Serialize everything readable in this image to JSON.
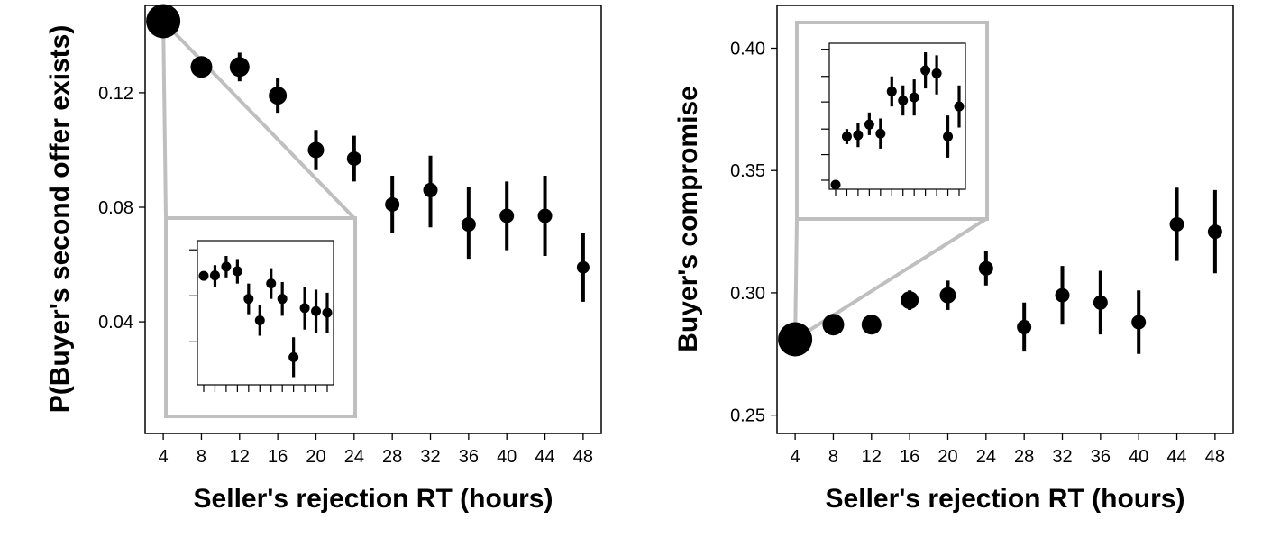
{
  "chart_data": [
    {
      "type": "scatter",
      "xlabel": "Seller's rejection RT (hours)",
      "ylabel": "P(Buyer's second offer exists)",
      "x": [
        4,
        8,
        12,
        16,
        20,
        24,
        28,
        32,
        36,
        40,
        44,
        48
      ],
      "y": [
        0.145,
        0.129,
        0.129,
        0.119,
        0.1,
        0.097,
        0.081,
        0.086,
        0.074,
        0.077,
        0.077,
        0.059
      ],
      "y_low": [
        0.145,
        0.129,
        0.124,
        0.113,
        0.093,
        0.089,
        0.071,
        0.073,
        0.062,
        0.065,
        0.063,
        0.047
      ],
      "y_high": [
        0.145,
        0.129,
        0.134,
        0.125,
        0.107,
        0.105,
        0.091,
        0.098,
        0.087,
        0.089,
        0.091,
        0.071
      ],
      "marker_size": [
        19,
        12,
        11,
        10,
        9,
        8,
        8,
        8,
        8,
        8,
        8,
        7
      ],
      "xlim": [
        2.1,
        49.9
      ],
      "ylim": [
        0.001,
        0.1505
      ],
      "xticks": [
        "4",
        "8",
        "12",
        "16",
        "20",
        "24",
        "28",
        "32",
        "36",
        "40",
        "44",
        "48"
      ],
      "yticks": [
        "0.04",
        "0.08",
        "0.12"
      ],
      "ytick_values": [
        0.04,
        0.08,
        0.12
      ],
      "zoom_range": [
        4,
        24
      ],
      "inset": {
        "y": [
          0.3,
          0.33,
          0.9,
          0.6,
          -1.2,
          -2.6,
          -0.2,
          -1.2,
          -5.0,
          -1.8,
          -2.0,
          -2.1
        ],
        "y_low": [
          0.0,
          -0.4,
          0.2,
          -0.2,
          -2.2,
          -3.6,
          -1.2,
          -2.3,
          -6.3,
          -3.2,
          -3.4,
          -3.4
        ],
        "y_high": [
          0.6,
          1.0,
          1.6,
          1.4,
          -0.2,
          -1.6,
          0.8,
          -0.1,
          -3.7,
          -0.4,
          -0.6,
          -0.8
        ],
        "ylim": [
          -6.8,
          2.6
        ],
        "ytick_values": [
          -4,
          -1,
          2
        ],
        "xtick_count": 12
      }
    },
    {
      "type": "scatter",
      "xlabel": "Seller's rejection RT (hours)",
      "ylabel": "Buyer's compromise",
      "x": [
        4,
        8,
        12,
        16,
        20,
        24,
        28,
        32,
        36,
        40,
        44,
        48
      ],
      "y": [
        0.281,
        0.287,
        0.287,
        0.297,
        0.299,
        0.31,
        0.286,
        0.299,
        0.296,
        0.288,
        0.328,
        0.325
      ],
      "y_low": [
        0.281,
        0.287,
        0.287,
        0.293,
        0.293,
        0.303,
        0.276,
        0.287,
        0.283,
        0.275,
        0.313,
        0.308
      ],
      "y_high": [
        0.281,
        0.287,
        0.287,
        0.301,
        0.305,
        0.317,
        0.296,
        0.311,
        0.309,
        0.301,
        0.343,
        0.342
      ],
      "marker_size": [
        19,
        12,
        11,
        10,
        9,
        8,
        8,
        8,
        8,
        8,
        8,
        8
      ],
      "xlim": [
        2.1,
        49.9
      ],
      "ylim": [
        0.2425,
        0.4175
      ],
      "xticks": [
        "4",
        "8",
        "12",
        "16",
        "20",
        "24",
        "28",
        "32",
        "36",
        "40",
        "44",
        "48"
      ],
      "yticks": [
        "0.25",
        "0.30",
        "0.35",
        "0.40"
      ],
      "ytick_values": [
        0.25,
        0.3,
        0.35,
        0.4
      ],
      "zoom_range": [
        4,
        24
      ],
      "inset": {
        "y": [
          -3.0,
          0.2,
          0.3,
          1.0,
          0.4,
          3.2,
          2.6,
          2.8,
          4.6,
          4.4,
          0.2,
          2.2
        ],
        "y_low": [
          -3.0,
          -0.3,
          -0.5,
          0.3,
          -0.6,
          2.2,
          1.6,
          1.6,
          3.4,
          3.0,
          -1.2,
          0.8
        ],
        "y_high": [
          -3.0,
          0.7,
          1.1,
          1.8,
          1.4,
          4.2,
          3.6,
          4.0,
          5.8,
          5.6,
          1.6,
          3.6
        ],
        "ylim": [
          -3.3,
          6.4
        ],
        "ytick_values": [
          -2.7,
          -1.0,
          0.7,
          2.5,
          4.2,
          6.0
        ],
        "xtick_count": 12
      }
    }
  ]
}
